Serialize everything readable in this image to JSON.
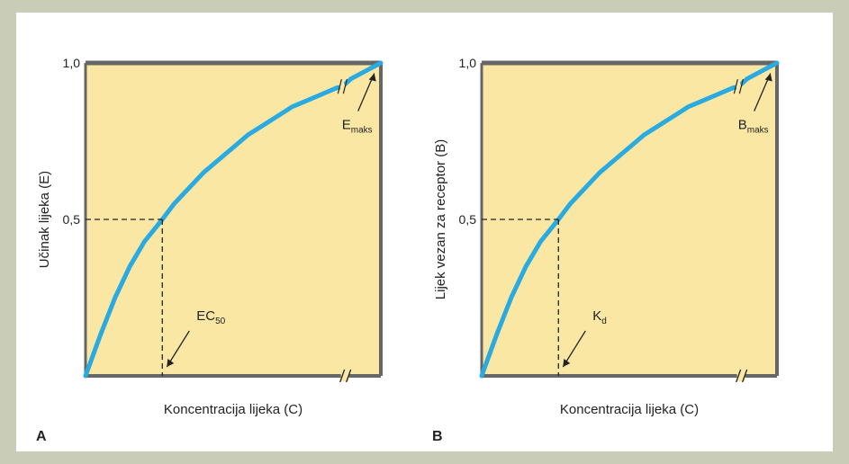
{
  "colors": {
    "background": "#c9cdb8",
    "plot_fill": "#fbe7a4",
    "curve": "#29abe2",
    "axis": "#666666",
    "dashed": "#222222"
  },
  "chart_data": [
    {
      "type": "line",
      "panel": "A",
      "xlabel": "Koncentracija lijeka (C)",
      "ylabel": "Učinak lijeka (E)",
      "yticks": [
        "1,0",
        "0,5"
      ],
      "ytick_values": [
        1.0,
        0.5
      ],
      "ylim": [
        0,
        1.0
      ],
      "xlim": [
        0,
        1.0
      ],
      "axis_break": true,
      "grid": false,
      "series": [
        {
          "x": [
            0,
            0.05,
            0.1,
            0.15,
            0.2,
            0.26,
            0.3,
            0.35,
            0.4,
            0.45,
            0.5,
            0.55,
            0.6,
            0.65,
            0.7,
            0.75,
            0.8,
            0.85,
            0.87,
            0.9,
            0.95,
            1.0
          ],
          "y": [
            0,
            0.13,
            0.25,
            0.35,
            0.43,
            0.5,
            0.55,
            0.6,
            0.65,
            0.69,
            0.73,
            0.77,
            0.8,
            0.83,
            0.86,
            0.88,
            0.9,
            0.92,
            0.925,
            0.95,
            0.975,
            1.0
          ]
        }
      ],
      "annotations": [
        {
          "label": "EC",
          "subscript": "50",
          "x": 0.26,
          "y": 0.5,
          "refline": true
        },
        {
          "label": "E",
          "subscript": "maks",
          "x": 0.99,
          "y": 0.99,
          "refline": false
        }
      ]
    },
    {
      "type": "line",
      "panel": "B",
      "xlabel": "Koncentracija lijeka (C)",
      "ylabel": "Lijek vezan za receptor (B)",
      "yticks": [
        "1,0",
        "0,5"
      ],
      "ytick_values": [
        1.0,
        0.5
      ],
      "ylim": [
        0,
        1.0
      ],
      "xlim": [
        0,
        1.0
      ],
      "axis_break": true,
      "grid": false,
      "series": [
        {
          "x": [
            0,
            0.05,
            0.1,
            0.15,
            0.2,
            0.26,
            0.3,
            0.35,
            0.4,
            0.45,
            0.5,
            0.55,
            0.6,
            0.65,
            0.7,
            0.75,
            0.8,
            0.85,
            0.87,
            0.9,
            0.95,
            1.0
          ],
          "y": [
            0,
            0.13,
            0.25,
            0.35,
            0.43,
            0.5,
            0.55,
            0.6,
            0.65,
            0.69,
            0.73,
            0.77,
            0.8,
            0.83,
            0.86,
            0.88,
            0.9,
            0.92,
            0.925,
            0.95,
            0.975,
            1.0
          ]
        }
      ],
      "annotations": [
        {
          "label": "K",
          "subscript": "d",
          "x": 0.26,
          "y": 0.5,
          "refline": true
        },
        {
          "label": "B",
          "subscript": "maks",
          "x": 0.99,
          "y": 0.99,
          "refline": false
        }
      ]
    }
  ]
}
